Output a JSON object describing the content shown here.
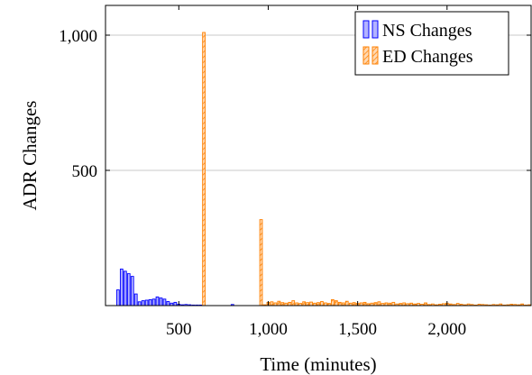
{
  "chart_data": {
    "type": "bar",
    "xlabel": "Time (minutes)",
    "ylabel": "ADR Changes",
    "xlim": [
      90,
      2470
    ],
    "ylim": [
      0,
      1110
    ],
    "xticks": [
      500,
      1000,
      1500,
      2000
    ],
    "xtick_labels": [
      "500",
      "1,000",
      "1,500",
      "2,000"
    ],
    "yticks": [
      500,
      1000
    ],
    "ytick_labels": [
      "500",
      "1,000"
    ],
    "grid": "horizontal",
    "legend_position": "top-right",
    "bar_interval": 20,
    "series": [
      {
        "name": "NS Changes",
        "color": "#0000ff",
        "fill": "#b3b3ff",
        "pattern": "solid",
        "x": [
          160,
          180,
          200,
          220,
          240,
          260,
          280,
          300,
          320,
          340,
          360,
          380,
          400,
          420,
          440,
          460,
          480,
          500,
          520,
          540,
          560,
          580,
          600,
          620,
          800
        ],
        "values": [
          58,
          135,
          127,
          118,
          108,
          43,
          14,
          18,
          20,
          22,
          24,
          32,
          28,
          24,
          15,
          9,
          12,
          5,
          3,
          4,
          3,
          2,
          2,
          2,
          4
        ]
      },
      {
        "name": "ED Changes",
        "color": "#ff8000",
        "fill": "#ffd9b3",
        "pattern": "hatched",
        "x": [
          640,
          960,
          980,
          1000,
          1020,
          1040,
          1060,
          1080,
          1100,
          1120,
          1140,
          1160,
          1180,
          1200,
          1220,
          1240,
          1260,
          1280,
          1300,
          1320,
          1340,
          1360,
          1380,
          1400,
          1420,
          1440,
          1460,
          1480,
          1500,
          1520,
          1540,
          1560,
          1580,
          1600,
          1620,
          1640,
          1660,
          1680,
          1700,
          1720,
          1740,
          1760,
          1780,
          1800,
          1820,
          1840,
          1860,
          1880,
          1900,
          1920,
          1940,
          1960,
          1980,
          2000,
          2020,
          2040,
          2060,
          2080,
          2100,
          2120,
          2140,
          2160,
          2180,
          2200,
          2220,
          2240,
          2260,
          2280,
          2300,
          2320,
          2340,
          2360,
          2380,
          2400,
          2420,
          2440,
          2460
        ],
        "values": [
          1010,
          318,
          3,
          12,
          14,
          10,
          16,
          11,
          9,
          12,
          18,
          10,
          8,
          14,
          11,
          13,
          9,
          11,
          15,
          10,
          8,
          22,
          18,
          12,
          10,
          16,
          9,
          11,
          8,
          10,
          12,
          7,
          9,
          11,
          14,
          8,
          10,
          9,
          12,
          6,
          8,
          10,
          7,
          9,
          6,
          8,
          5,
          10,
          4,
          6,
          3,
          5,
          7,
          9,
          6,
          4,
          8,
          5,
          3,
          6,
          4,
          2,
          5,
          4,
          3,
          2,
          4,
          3,
          6,
          2,
          3,
          5,
          4,
          3,
          6,
          2,
          3
        ]
      }
    ]
  }
}
